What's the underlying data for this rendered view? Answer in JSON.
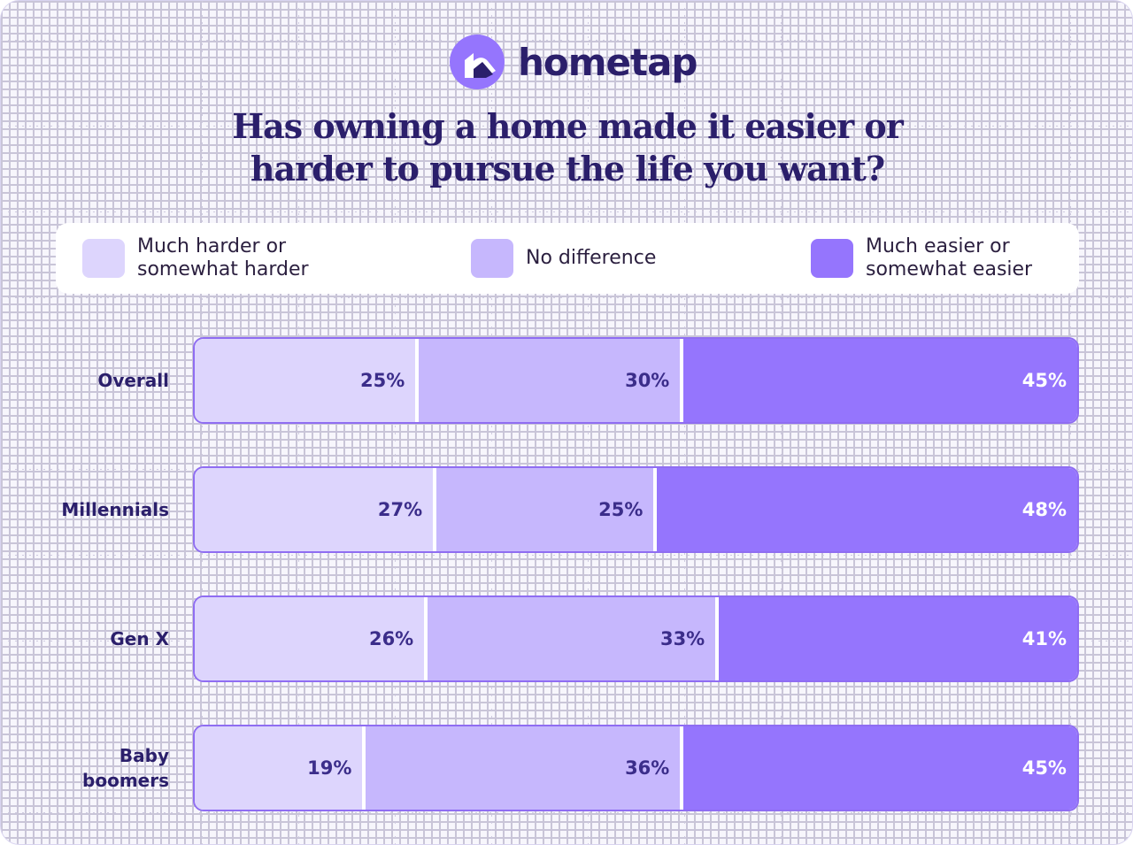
{
  "brand": {
    "name": "hometap",
    "logo_icon": "hometap-house-icon",
    "colors": {
      "navy": "#2b1f6b",
      "much_harder": "#ddd5fd",
      "no_difference": "#c6b7fd",
      "much_easier": "#9575fd",
      "bar_border": "#8f6df2",
      "background": "#f7f6fc"
    }
  },
  "chart_data": {
    "type": "bar",
    "orientation": "horizontal",
    "stacked": true,
    "normalized": true,
    "title": "Has owning a home made it easier or harder to pursue the life you want?",
    "title_lines": [
      "Has owning a home made it easier or",
      "harder to pursue the life you want?"
    ],
    "categories": [
      "Overall",
      "Millennials",
      "Gen X",
      "Baby boomers"
    ],
    "category_lines": [
      [
        "Overall"
      ],
      [
        "Millennials"
      ],
      [
        "Gen X"
      ],
      [
        "Baby",
        "boomers"
      ]
    ],
    "series": [
      {
        "name": "Much harder or somewhat harder",
        "name_lines": [
          "Much harder or",
          "somewhat harder"
        ],
        "color": "#ddd5fd",
        "values": [
          25,
          27,
          26,
          19
        ],
        "labels": [
          "25%",
          "27%",
          "26%",
          "19%"
        ]
      },
      {
        "name": "No difference",
        "name_lines": [
          "No difference"
        ],
        "color": "#c6b7fd",
        "values": [
          30,
          25,
          33,
          36
        ],
        "labels": [
          "30%",
          "25%",
          "33%",
          "36%"
        ]
      },
      {
        "name": "Much easier or somewhat easier",
        "name_lines": [
          "Much easier or",
          "somewhat easier"
        ],
        "color": "#9575fd",
        "values": [
          45,
          48,
          41,
          45
        ],
        "labels": [
          "45%",
          "48%",
          "41%",
          "45%"
        ]
      }
    ],
    "unit": "%",
    "legend_position": "top",
    "grid": true
  }
}
